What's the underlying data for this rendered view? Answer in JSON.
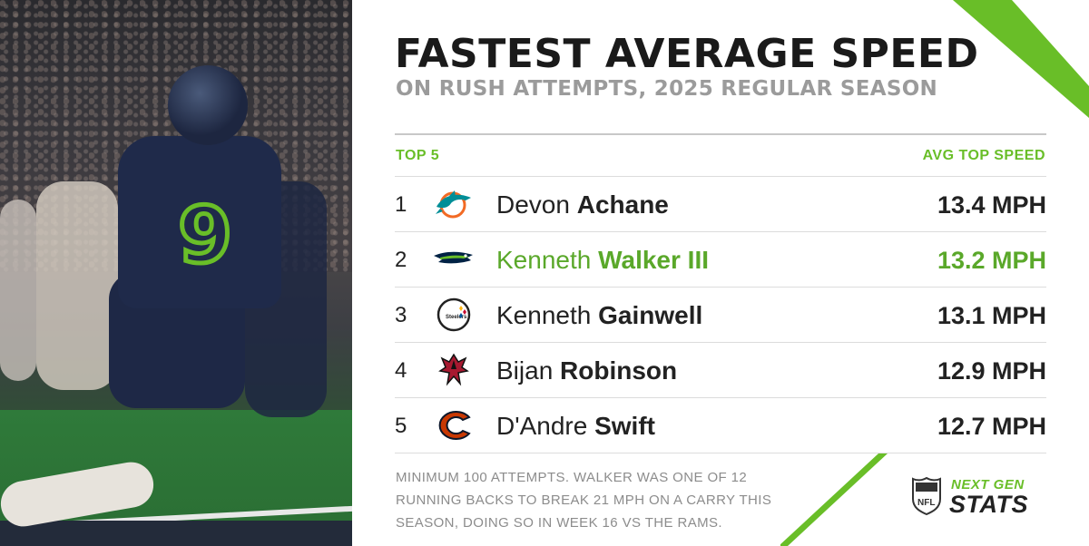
{
  "header": {
    "title": "FASTEST AVERAGE SPEED",
    "subtitle": "ON RUSH ATTEMPTS, 2025 REGULAR SEASON"
  },
  "table": {
    "left_header": "TOP 5",
    "right_header": "AVG TOP SPEED",
    "rows": [
      {
        "rank": "1",
        "first": "Devon",
        "last": "Achane",
        "speed": "13.4 MPH",
        "team_icon": "dolphins-logo-icon"
      },
      {
        "rank": "2",
        "first": "Kenneth",
        "last": "Walker III",
        "speed": "13.2 MPH",
        "team_icon": "seahawks-logo-icon",
        "highlight": true
      },
      {
        "rank": "3",
        "first": "Kenneth",
        "last": "Gainwell",
        "speed": "13.1 MPH",
        "team_icon": "steelers-logo-icon"
      },
      {
        "rank": "4",
        "first": "Bijan",
        "last": "Robinson",
        "speed": "12.9 MPH",
        "team_icon": "falcons-logo-icon"
      },
      {
        "rank": "5",
        "first": "D'Andre",
        "last": "Swift",
        "speed": "12.7 MPH",
        "team_icon": "bears-logo-icon"
      }
    ]
  },
  "footnote": "MINIMUM 100 ATTEMPTS. WALKER WAS ONE OF 12 RUNNING BACKS TO BREAK 21 MPH ON A CARRY THIS SEASON, DOING SO IN WEEK 16 VS THE RAMS.",
  "brand": {
    "shield_icon": "nfl-shield-icon",
    "line1": "NEXT GEN",
    "line2": "STATS"
  },
  "colors": {
    "accent": "#69be28",
    "text": "#1a1a1a",
    "muted": "#9b9b9b"
  }
}
